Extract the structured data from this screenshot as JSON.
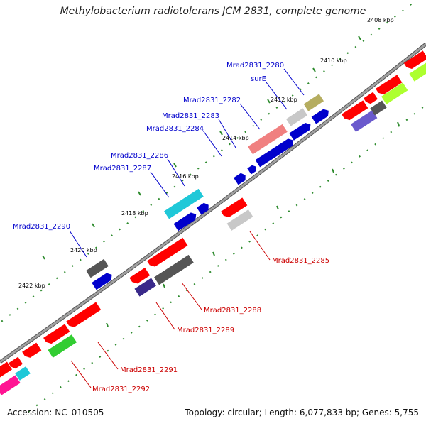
{
  "title": "Methylobacterium radiotolerans JCM 2831, complete genome",
  "footer": {
    "accession": "Accession: NC_010505",
    "summary": "Topology: circular; Length: 6,077,833 bp; Genes: 5,755"
  },
  "colors": {
    "forward_label": "#0000cc",
    "reverse_label": "#cc0000",
    "backbone": "#888888",
    "tick": "#2e8b2e"
  },
  "kbp_ticks": [
    "2408 kbp",
    "2410 kbp",
    "2412 kbp",
    "2414 kbp",
    "2416 kbp",
    "2418 kbp",
    "2420 kbp",
    "2422 kbp"
  ],
  "forward_labels": [
    "Mrad2831_2280",
    "surE",
    "Mrad2831_2282",
    "Mrad2831_2283",
    "Mrad2831_2284",
    "Mrad2831_2286",
    "Mrad2831_2287",
    "Mrad2831_2290"
  ],
  "reverse_labels": [
    "Mrad2831_2285",
    "Mrad2831_2288",
    "Mrad2831_2289",
    "Mrad2831_2291",
    "Mrad2831_2292"
  ]
}
